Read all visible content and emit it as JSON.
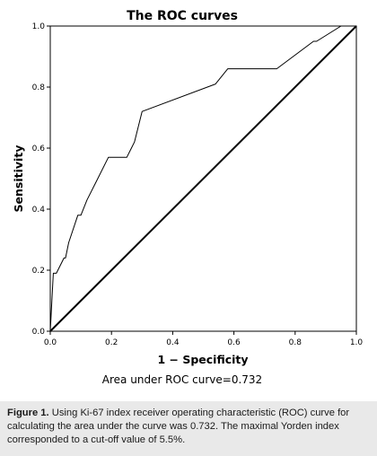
{
  "chart_data": {
    "type": "line",
    "title": "The ROC curves",
    "xlabel": "1 − Specificity",
    "ylabel": "Sensitivity",
    "xlim": [
      0,
      1
    ],
    "ylim": [
      0,
      1
    ],
    "xticks": [
      "0.0",
      "0.2",
      "0.4",
      "0.6",
      "0.8",
      "1.0"
    ],
    "yticks": [
      "0.0",
      "0.2",
      "0.4",
      "0.6",
      "0.8",
      "1.0"
    ],
    "grid": false,
    "legend": "none",
    "annotation": "Area under ROC curve=0.732",
    "series": [
      {
        "x": [
          0.0,
          0.01,
          0.02,
          0.045,
          0.05,
          0.06,
          0.09,
          0.1,
          0.12,
          0.15,
          0.19,
          0.25,
          0.265,
          0.275,
          0.3,
          0.54,
          0.58,
          0.74,
          0.86,
          0.87,
          0.95,
          1.0
        ],
        "y": [
          0.0,
          0.19,
          0.19,
          0.24,
          0.24,
          0.29,
          0.38,
          0.38,
          0.43,
          0.49,
          0.57,
          0.57,
          0.6,
          0.62,
          0.72,
          0.81,
          0.86,
          0.86,
          0.95,
          0.95,
          1.0,
          1.0
        ],
        "color": "#000000"
      },
      {
        "x": [
          0,
          1
        ],
        "y": [
          0,
          1
        ],
        "color": "#000000"
      }
    ]
  },
  "caption": {
    "label": "Figure 1.",
    "text": " Using Ki-67 index receiver operating characteristic (ROC) curve for calculating the area under the curve was 0.732. The maximal Yorden index corresponded to a cut-off value of 5.5%."
  }
}
